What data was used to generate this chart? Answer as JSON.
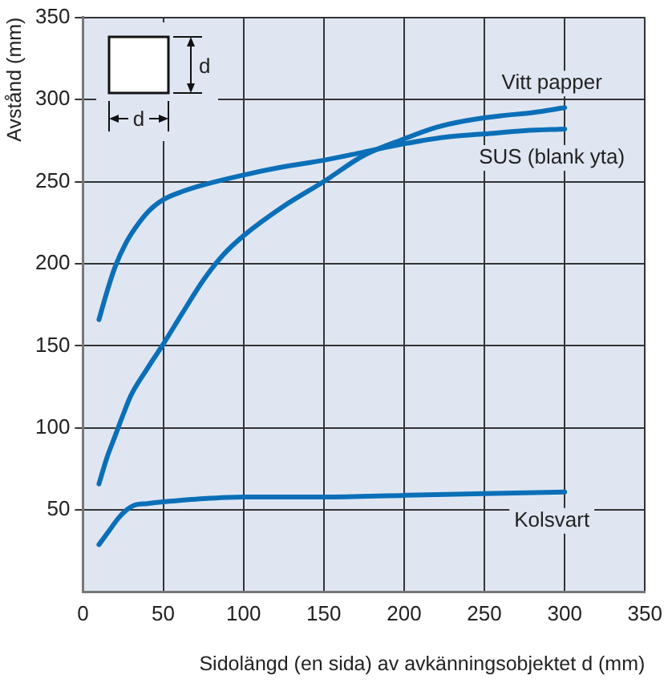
{
  "chart_data": {
    "type": "line",
    "xlabel": "Sidolängd (en sida) av avkänningsobjektet d (mm)",
    "ylabel": "Avstånd (mm)",
    "xlim": [
      0,
      350
    ],
    "xticks": [
      0,
      50,
      100,
      150,
      200,
      250,
      300,
      350
    ],
    "ylim": [
      0,
      350
    ],
    "yticks": [
      50,
      100,
      150,
      200,
      250,
      300,
      350
    ],
    "grid": true,
    "legend": false,
    "series": [
      {
        "name": "Vitt papper",
        "color": "#0b6fb8",
        "x": [
          10,
          15,
          20,
          25,
          30,
          40,
          50,
          62,
          75,
          87,
          100,
          125,
          150,
          175,
          200,
          220,
          238,
          260,
          280,
          300
        ],
        "values": [
          66,
          82,
          95,
          108,
          120,
          136,
          151,
          170,
          190,
          205,
          217,
          235,
          250,
          266,
          276,
          283,
          287,
          290,
          292,
          295
        ]
      },
      {
        "name": "SUS (blank yta)",
        "color": "#0b6fb8",
        "x": [
          10,
          15,
          20,
          27,
          35,
          42,
          50,
          62,
          75,
          100,
          125,
          150,
          175,
          200,
          225,
          250,
          275,
          300
        ],
        "values": [
          166,
          183,
          198,
          213,
          225,
          233,
          239,
          244,
          248,
          254,
          259,
          263,
          268,
          273,
          277,
          279,
          281,
          282
        ]
      },
      {
        "name": "Kolsvart",
        "color": "#0b6fb8",
        "x": [
          10,
          16,
          22,
          27,
          32,
          40,
          50,
          75,
          100,
          125,
          150,
          200,
          250,
          300
        ],
        "values": [
          29,
          37,
          45,
          50,
          53,
          54,
          55,
          57,
          58,
          58,
          58,
          59,
          60,
          61
        ]
      }
    ],
    "annotations": [
      "d",
      "d"
    ]
  }
}
